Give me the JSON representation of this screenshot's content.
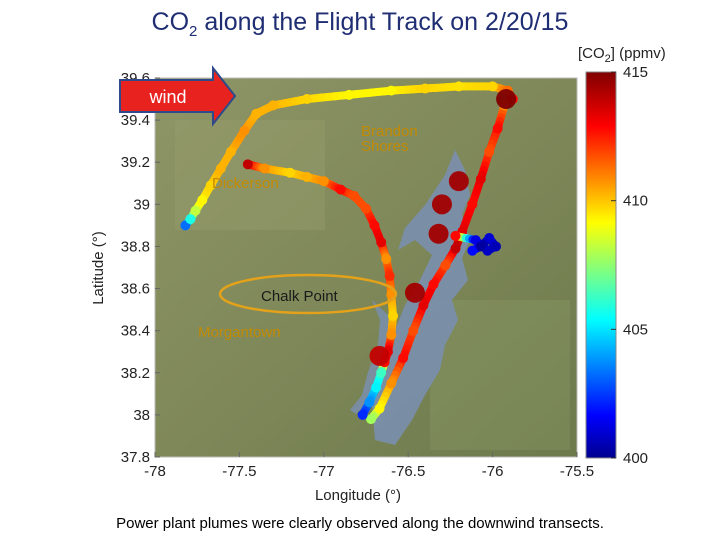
{
  "slide": {
    "title_main": "CO",
    "title_sub": "2",
    "title_rest": " along the Flight Track on 2/20/15",
    "caption": "Power plant plumes were clearly observed along the downwind transects.",
    "wind_label": "wind"
  },
  "chart_data": {
    "type": "scatter",
    "title": "CO2 along the Flight Track on 2/20/15",
    "xlabel": "Longitude (°)",
    "ylabel": "Latitude (°)",
    "xlim": [
      -78,
      -75.5
    ],
    "ylim": [
      37.8,
      39.6
    ],
    "xticks": [
      -78,
      -77.5,
      -77,
      -76.5,
      -76,
      -75.5
    ],
    "xtick_labels": [
      "-78",
      "-77.5",
      "-77",
      "-76.5",
      "-76",
      "-75.5"
    ],
    "yticks": [
      37.8,
      38,
      38.2,
      38.4,
      38.6,
      38.8,
      39,
      39.2,
      39.4,
      39.6
    ],
    "ytick_labels": [
      "37.8",
      "38",
      "38.2",
      "38.4",
      "38.6",
      "38.8",
      "39",
      "39.2",
      "39.4",
      "39.6"
    ],
    "colorbar": {
      "label_prefix": "[CO",
      "label_sub": "2",
      "label_suffix": "]  (ppmv)",
      "min": 400,
      "max": 415,
      "ticks": [
        400,
        405,
        410,
        415
      ],
      "tick_labels": [
        "400",
        "405",
        "410",
        "415"
      ]
    },
    "annotations": {
      "dickerson": "Dickerson",
      "brandon_line1": "Brandon",
      "brandon_line2": "Shores",
      "chalk_point": "Chalk Point",
      "morgantown": "Morgantown"
    },
    "series": [
      {
        "points": [
          [
            -77.82,
            38.9,
            403.5
          ],
          [
            -77.79,
            38.93,
            406
          ],
          [
            -77.76,
            38.97,
            408.5
          ],
          [
            -77.72,
            39.02,
            409.5
          ],
          [
            -77.67,
            39.09,
            410
          ],
          [
            -77.61,
            39.17,
            410.5
          ],
          [
            -77.55,
            39.25,
            410.5
          ],
          [
            -77.47,
            39.35,
            411
          ],
          [
            -77.4,
            39.43,
            410.5
          ],
          [
            -77.3,
            39.47,
            410.5
          ],
          [
            -77.1,
            39.5,
            410
          ],
          [
            -76.85,
            39.52,
            409.5
          ],
          [
            -76.6,
            39.54,
            409.5
          ],
          [
            -76.4,
            39.55,
            410
          ],
          [
            -76.2,
            39.56,
            409.8
          ],
          [
            -76.0,
            39.56,
            410
          ],
          [
            -75.91,
            39.54,
            411.5
          ],
          [
            -75.88,
            39.5,
            413
          ]
        ]
      },
      {
        "points": [
          [
            -75.93,
            39.47,
            411
          ],
          [
            -75.97,
            39.36,
            413
          ],
          [
            -76.02,
            39.25,
            412
          ],
          [
            -76.07,
            39.12,
            413.5
          ],
          [
            -76.12,
            39.0,
            413
          ],
          [
            -76.18,
            38.87,
            413.5
          ],
          [
            -76.22,
            38.79,
            414
          ],
          [
            -76.28,
            38.71,
            412
          ],
          [
            -76.35,
            38.62,
            413
          ],
          [
            -76.41,
            38.52,
            413.5
          ],
          [
            -76.47,
            38.4,
            412
          ],
          [
            -76.53,
            38.27,
            413
          ],
          [
            -76.6,
            38.15,
            411
          ],
          [
            -76.67,
            38.03,
            409.5
          ],
          [
            -76.72,
            37.98,
            408
          ]
        ]
      },
      {
        "points": [
          [
            -77.45,
            39.19,
            414
          ],
          [
            -77.35,
            39.17,
            411
          ],
          [
            -77.2,
            39.15,
            410
          ],
          [
            -77.1,
            39.13,
            410.5
          ],
          [
            -77.0,
            39.11,
            411
          ],
          [
            -76.9,
            39.07,
            413
          ],
          [
            -76.82,
            39.04,
            412
          ],
          [
            -76.75,
            38.98,
            412
          ],
          [
            -76.7,
            38.9,
            413
          ],
          [
            -76.66,
            38.82,
            413.5
          ],
          [
            -76.63,
            38.74,
            411
          ],
          [
            -76.61,
            38.66,
            412.5
          ],
          [
            -76.6,
            38.57,
            411
          ],
          [
            -76.59,
            38.47,
            410
          ],
          [
            -76.6,
            38.38,
            411
          ],
          [
            -76.62,
            38.3,
            413.5
          ],
          [
            -76.64,
            38.25,
            413
          ],
          [
            -76.66,
            38.2,
            406.5
          ],
          [
            -76.69,
            38.13,
            405.5
          ],
          [
            -76.73,
            38.06,
            404
          ],
          [
            -76.77,
            38.0,
            402.5
          ]
        ]
      },
      {
        "points": [
          [
            -76.22,
            38.85,
            413
          ],
          [
            -76.1,
            38.83,
            401.5
          ],
          [
            -76.03,
            38.78,
            401
          ],
          [
            -75.98,
            38.8,
            400.8
          ],
          [
            -76.02,
            38.84,
            401.2
          ],
          [
            -76.07,
            38.8,
            400.5
          ],
          [
            -76.12,
            38.78,
            402
          ]
        ]
      },
      {
        "points": [
          [
            -76.46,
            38.58,
            414.5
          ],
          [
            -76.32,
            38.86,
            414.5
          ],
          [
            -76.3,
            39.0,
            414.5
          ],
          [
            -76.2,
            39.11,
            414.5
          ],
          [
            -75.92,
            39.5,
            415
          ],
          [
            -76.67,
            38.28,
            414
          ]
        ]
      }
    ]
  }
}
